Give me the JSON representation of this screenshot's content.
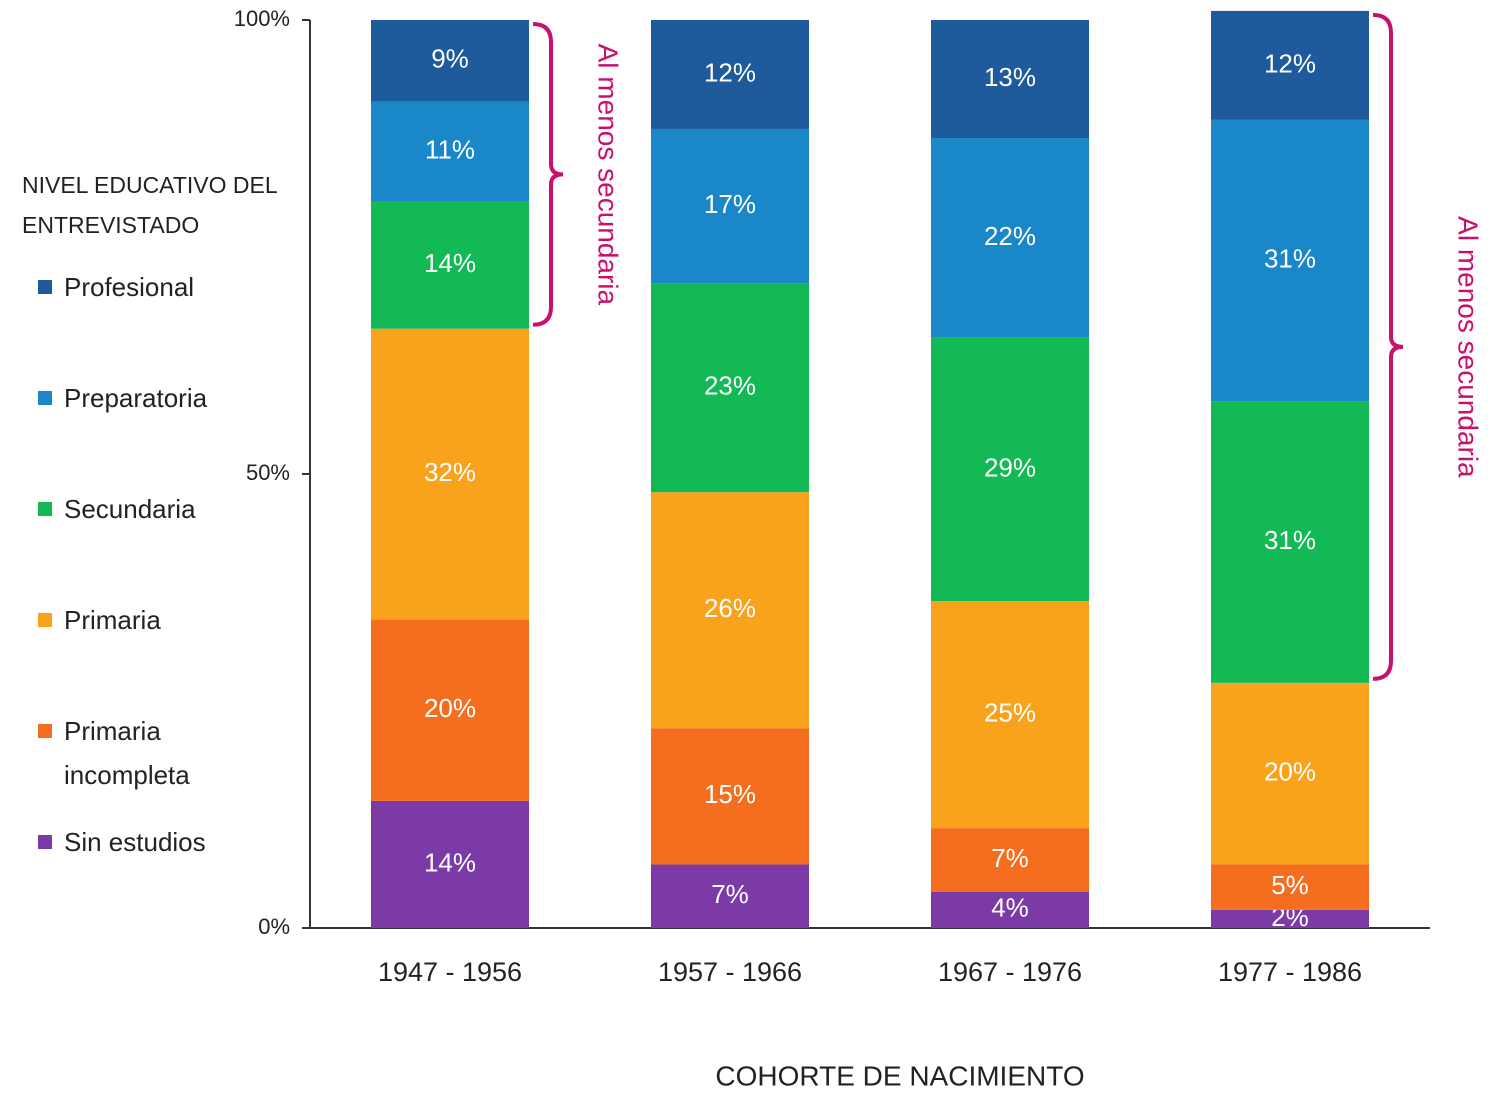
{
  "chart_data": {
    "type": "stacked_bar",
    "x_label": "COHORTE DE NACIMIENTO",
    "legend_title": "NIVEL EDUCATIVO DEL ENTREVISTADO",
    "legend": "left",
    "categories": [
      "1947 - 1956",
      "1957 - 1966",
      "1967 - 1976",
      "1977 - 1986"
    ],
    "ylim": [
      0,
      100
    ],
    "yticks": [
      {
        "value": 0,
        "label": "0%"
      },
      {
        "value": 50,
        "label": "50%"
      },
      {
        "value": 100,
        "label": "100%"
      }
    ],
    "series": [
      {
        "name": "Sin estudios",
        "color": "#7b3aa6",
        "values": [
          14,
          7,
          4,
          2
        ],
        "value_labels": [
          "14%",
          "7%",
          "4%",
          "2%"
        ]
      },
      {
        "name": "Primaria incompleta",
        "color": "#f56d1e",
        "values": [
          20,
          15,
          7,
          5
        ],
        "value_labels": [
          "20%",
          "15%",
          "7%",
          "5%"
        ]
      },
      {
        "name": "Primaria",
        "color": "#f9a31c",
        "values": [
          32,
          26,
          25,
          20
        ],
        "value_labels": [
          "32%",
          "26%",
          "25%",
          "20%"
        ]
      },
      {
        "name": "Secundaria",
        "color": "#12b955",
        "values": [
          14,
          23,
          29,
          31
        ],
        "value_labels": [
          "14%",
          "23%",
          "29%",
          "31%"
        ]
      },
      {
        "name": "Preparatoria",
        "color": "#1a87c9",
        "values": [
          11,
          17,
          22,
          31
        ],
        "value_labels": [
          "11%",
          "17%",
          "22%",
          "31%"
        ]
      },
      {
        "name": "Profesional",
        "color": "#1e5a9c",
        "values": [
          9,
          12,
          13,
          12
        ],
        "value_labels": [
          "9%",
          "12%",
          "13%",
          "12%"
        ]
      }
    ],
    "annotations": [
      "Al menos secundaria",
      "Al menos secundaria"
    ]
  }
}
